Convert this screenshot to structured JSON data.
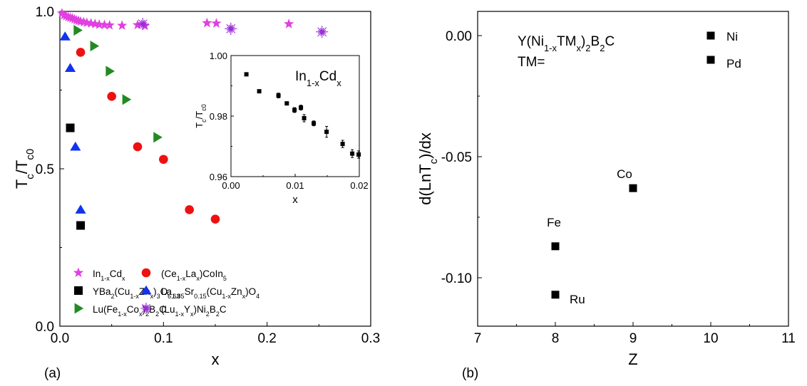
{
  "chart_data": [
    {
      "panel_label": "(a)",
      "type": "scatter",
      "xlabel": "x",
      "ylabel": {
        "main": "T",
        "sub1": "c",
        "slash": "/T",
        "sub2": "c0"
      },
      "xlim": [
        0,
        0.3
      ],
      "ylim": [
        0,
        1.0
      ],
      "xticks": [
        0.0,
        0.1,
        0.2,
        0.3
      ],
      "xtick_labels": [
        "0.0",
        "0.1",
        "0.2",
        "0.3"
      ],
      "yticks": [
        0.0,
        0.5,
        1.0
      ],
      "ytick_labels": [
        "0.0",
        "0.5",
        "1.0"
      ],
      "grid": false,
      "legend_position": "bottom-left",
      "series": [
        {
          "key": "in",
          "marker": "star",
          "color": "#e040e0",
          "legend": [
            [
              "In",
              ""
            ],
            [
              "1-x",
              "sub"
            ],
            [
              "Cd",
              ""
            ],
            [
              "x",
              "sub"
            ]
          ],
          "x": [
            0.002,
            0.004,
            0.006,
            0.008,
            0.01,
            0.012,
            0.014,
            0.016,
            0.018,
            0.02,
            0.023,
            0.026,
            0.03,
            0.034,
            0.038,
            0.043,
            0.048,
            0.06,
            0.075,
            0.082,
            0.142,
            0.151,
            0.221
          ],
          "y": [
            0.994,
            0.988,
            0.985,
            0.982,
            0.98,
            0.978,
            0.975,
            0.972,
            0.97,
            0.968,
            0.966,
            0.964,
            0.962,
            0.96,
            0.958,
            0.957,
            0.956,
            0.955,
            0.957,
            0.954,
            0.963,
            0.962,
            0.96
          ]
        },
        {
          "key": "ce",
          "marker": "circle",
          "color": "#ee1111",
          "legend": [
            [
              "(Ce",
              ""
            ],
            [
              "1-x",
              "sub"
            ],
            [
              "La",
              ""
            ],
            [
              "x",
              "sub"
            ],
            [
              ")CoIn",
              ""
            ],
            [
              "5",
              "sub"
            ]
          ],
          "x": [
            0.02,
            0.05,
            0.075,
            0.1,
            0.125,
            0.15
          ],
          "y": [
            0.87,
            0.73,
            0.57,
            0.53,
            0.37,
            0.34
          ]
        },
        {
          "key": "ybco",
          "marker": "square",
          "color": "#000000",
          "legend": [
            [
              "YBa",
              ""
            ],
            [
              "2",
              "sub"
            ],
            [
              "(Cu",
              ""
            ],
            [
              "1-x",
              "sub"
            ],
            [
              "Zn",
              ""
            ],
            [
              "x",
              "sub"
            ],
            [
              ")",
              ""
            ],
            [
              "3",
              "sub"
            ],
            [
              "O",
              ""
            ],
            [
              "6.63",
              "sub"
            ]
          ],
          "x": [
            0.01,
            0.02
          ],
          "y": [
            0.63,
            0.32
          ]
        },
        {
          "key": "lsco",
          "marker": "triangle-up",
          "color": "#1133ee",
          "legend": [
            [
              "La",
              ""
            ],
            [
              "1.85",
              "sub"
            ],
            [
              "Sr",
              ""
            ],
            [
              "0.15",
              "sub"
            ],
            [
              "(Cu",
              ""
            ],
            [
              "1-x",
              "sub"
            ],
            [
              "Zn",
              ""
            ],
            [
              "x",
              "sub"
            ],
            [
              ")O",
              ""
            ],
            [
              "4",
              "sub"
            ]
          ],
          "x": [
            0.005,
            0.01,
            0.015,
            0.02
          ],
          "y": [
            0.92,
            0.82,
            0.57,
            0.37
          ]
        },
        {
          "key": "lufe",
          "marker": "triangle-right",
          "color": "#238a23",
          "legend": [
            [
              "Lu(Fe",
              ""
            ],
            [
              "1-x",
              "sub"
            ],
            [
              "Co",
              ""
            ],
            [
              "x",
              "sub"
            ],
            [
              ")",
              ""
            ],
            [
              "2",
              "sub"
            ],
            [
              "B",
              ""
            ],
            [
              "2",
              "sub"
            ],
            [
              "C",
              ""
            ]
          ],
          "x": [
            0.017,
            0.033,
            0.048,
            0.064,
            0.094
          ],
          "y": [
            0.94,
            0.89,
            0.81,
            0.72,
            0.6
          ]
        },
        {
          "key": "luy",
          "marker": "asterisk",
          "color": "#9a2fd6",
          "legend": [
            [
              "(Lu",
              ""
            ],
            [
              "1-x",
              "sub"
            ],
            [
              "Y",
              ""
            ],
            [
              "x",
              "sub"
            ],
            [
              ")Ni",
              ""
            ],
            [
              "2",
              "sub"
            ],
            [
              "B",
              ""
            ],
            [
              "2",
              "sub"
            ],
            [
              "C",
              ""
            ]
          ],
          "x": [
            0.08,
            0.165,
            0.253
          ],
          "y": [
            0.96,
            0.945,
            0.935
          ]
        }
      ],
      "inset": {
        "type": "scatter",
        "label": [
          [
            "In",
            ""
          ],
          [
            "1-x",
            "sub"
          ],
          [
            "Cd",
            ""
          ],
          [
            "x",
            "sub"
          ]
        ],
        "xlabel": "x",
        "ylabel": {
          "main": "T",
          "sub1": "c",
          "slash": "/T",
          "sub2": "c0"
        },
        "xlim": [
          0,
          0.02
        ],
        "ylim": [
          0.96,
          1.0
        ],
        "xticks": [
          0.0,
          0.01,
          0.02
        ],
        "xtick_labels": [
          "0.00",
          "0.01",
          "0.02"
        ],
        "yticks": [
          0.96,
          0.98,
          1.0
        ],
        "ytick_labels": [
          "0.96",
          "0.98",
          "1.00"
        ],
        "marker": "square",
        "color": "#000000",
        "x": [
          0.0024,
          0.0044,
          0.0074,
          0.0087,
          0.0099,
          0.0109,
          0.0114,
          0.0129,
          0.0149,
          0.0174,
          0.0189,
          0.0199
        ],
        "y": [
          0.9938,
          0.9882,
          0.9868,
          0.9842,
          0.982,
          0.9828,
          0.9793,
          0.9776,
          0.9748,
          0.9708,
          0.9676,
          0.9673
        ],
        "yerr": [
          0,
          0,
          0.0008,
          0.0002,
          0.0008,
          0.0008,
          0.0012,
          0.0008,
          0.0018,
          0.0012,
          0.0013,
          0.0012
        ]
      }
    },
    {
      "panel_label": "(b)",
      "type": "scatter",
      "xlabel": "Z",
      "ylabel": {
        "pre": "d(LnT",
        "sub": "c",
        "post": ")/dx"
      },
      "xlim": [
        7,
        11
      ],
      "ylim": [
        -0.12,
        0.01
      ],
      "xticks": [
        7,
        8,
        9,
        10,
        11
      ],
      "xtick_labels": [
        "7",
        "8",
        "9",
        "10",
        "11"
      ],
      "yticks": [
        0.0,
        -0.05,
        -0.1
      ],
      "ytick_labels": [
        "0.00",
        "-0.05",
        "-0.10"
      ],
      "grid": false,
      "annotation_line1": [
        [
          "Y(Ni",
          ""
        ],
        [
          "1-x",
          "sub"
        ],
        [
          "TM",
          ""
        ],
        [
          "x",
          "sub"
        ],
        [
          ")",
          ""
        ],
        [
          "2",
          "sub"
        ],
        [
          "B",
          ""
        ],
        [
          "2",
          "sub"
        ],
        [
          "C",
          ""
        ]
      ],
      "annotation_line2": "TM=",
      "marker": "square",
      "color": "#000000",
      "points": [
        {
          "label": "Ni",
          "x": 10,
          "y": 0.0
        },
        {
          "label": "Pd",
          "x": 10,
          "y": -0.01
        },
        {
          "label": "Co",
          "x": 9,
          "y": -0.063
        },
        {
          "label": "Fe",
          "x": 8,
          "y": -0.087
        },
        {
          "label": "Ru",
          "x": 8,
          "y": -0.107
        }
      ]
    }
  ]
}
